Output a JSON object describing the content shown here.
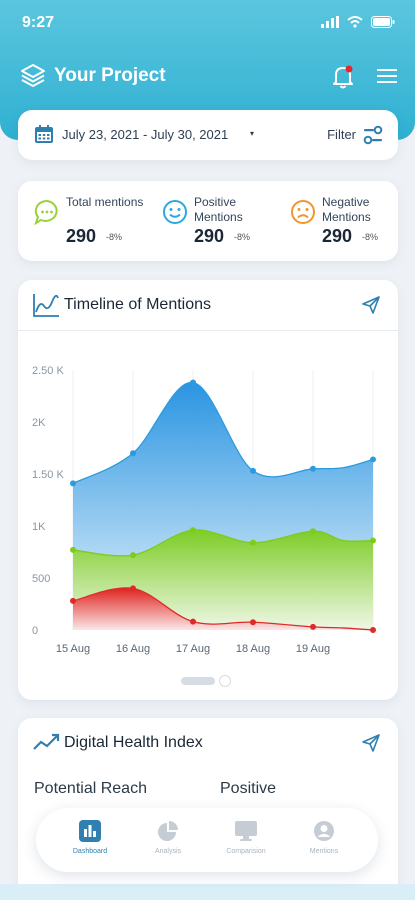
{
  "status_bar": {
    "time": "9:27"
  },
  "header": {
    "title": "Your Project"
  },
  "date_filter": {
    "range": "July 23, 2021 - July 30, 2021",
    "caret": "▾",
    "filter_label": "Filter"
  },
  "stats": [
    {
      "label": "Total mentions",
      "value": "290",
      "change": "-8%",
      "icon": "chat-bubble-icon",
      "color": "#9ad23a"
    },
    {
      "label": "Positive Mentions",
      "value": "290",
      "change": "-8%",
      "icon": "smile-face-icon",
      "color": "#2ba8e0"
    },
    {
      "label": "Negative Mentions",
      "value": "290",
      "change": "-8%",
      "icon": "sad-face-icon",
      "color": "#f0962a"
    }
  ],
  "timeline": {
    "title": "Timeline of Mentions"
  },
  "chart_data": {
    "type": "area",
    "y_ticks": [
      "0",
      "500",
      "1K",
      "1.50 K",
      "2K",
      "2.50 K"
    ],
    "ylim": [
      0,
      2500
    ],
    "x_ticks": [
      "15 Aug",
      "16 Aug",
      "17 Aug",
      "18 Aug",
      "19 Aug"
    ],
    "grid": true,
    "series": [
      {
        "color": "#2b9be0",
        "x": [
          0,
          1,
          2,
          3,
          4,
          4.5,
          5
        ],
        "values": [
          1410,
          1700,
          2380,
          1530,
          1550,
          1560,
          1640
        ]
      },
      {
        "color": "#7ccc1c",
        "x": [
          0,
          1,
          2,
          3,
          4,
          4.5,
          5
        ],
        "values": [
          770,
          720,
          960,
          840,
          950,
          860,
          860
        ]
      },
      {
        "color": "#e02a2a",
        "x": [
          0,
          1,
          2,
          3,
          4,
          4.5,
          5
        ],
        "values": [
          280,
          400,
          80,
          75,
          30,
          20,
          0
        ]
      }
    ]
  },
  "health": {
    "title": "Digital Health Index",
    "col1": "Potential Reach",
    "col2": "Positive"
  },
  "bottom_nav": [
    {
      "label": "Dashboard",
      "icon": "dashboard-icon",
      "active": true
    },
    {
      "label": "Analysis",
      "icon": "pie-chart-icon",
      "active": false
    },
    {
      "label": "Comparision",
      "icon": "monitor-icon",
      "active": false
    },
    {
      "label": "Mentions",
      "icon": "user-icon",
      "active": false
    }
  ]
}
